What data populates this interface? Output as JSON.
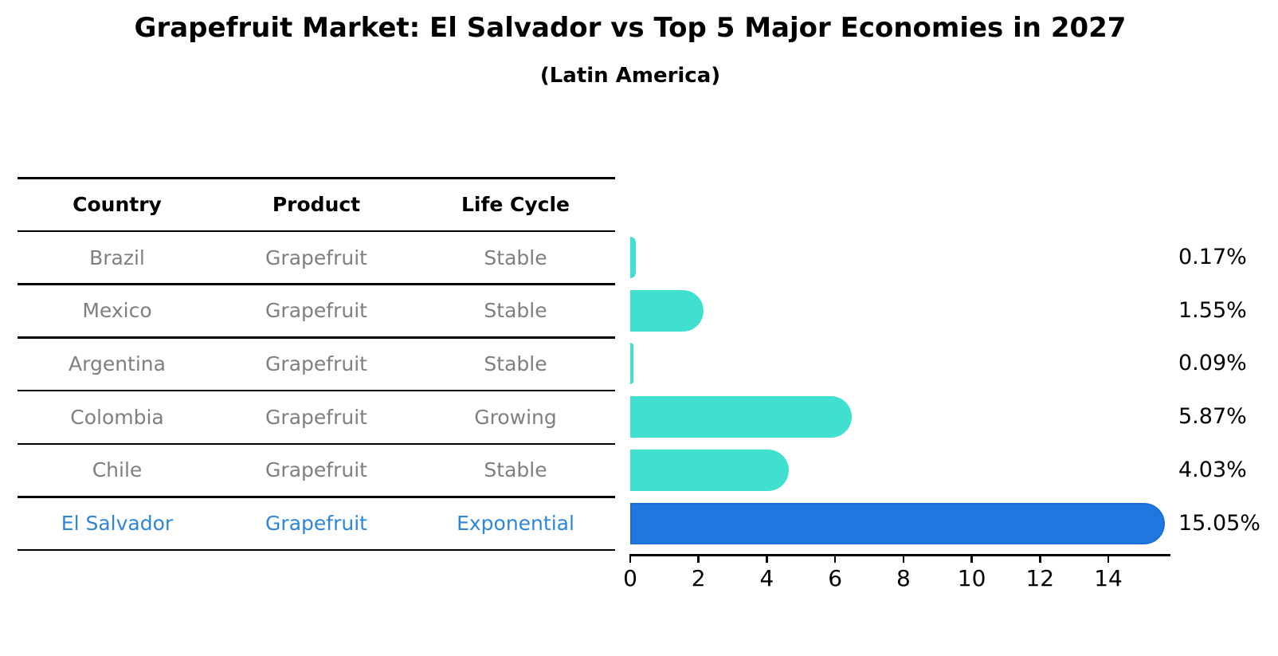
{
  "title": "Grapefruit Market: El Salvador vs Top 5 Major Economies in 2027",
  "subtitle": "(Latin America)",
  "table": {
    "headers": [
      "Country",
      "Product",
      "Life Cycle"
    ],
    "rows": [
      {
        "country": "Brazil",
        "product": "Grapefruit",
        "life_cycle": "Stable"
      },
      {
        "country": "Mexico",
        "product": "Grapefruit",
        "life_cycle": "Stable"
      },
      {
        "country": "Argentina",
        "product": "Grapefruit",
        "life_cycle": "Stable"
      },
      {
        "country": "Colombia",
        "product": "Grapefruit",
        "life_cycle": "Growing"
      },
      {
        "country": "Chile",
        "product": "Grapefruit",
        "life_cycle": "Stable"
      },
      {
        "country": "El Salvador",
        "product": "Grapefruit",
        "life_cycle": "Exponential"
      }
    ]
  },
  "chart_data": {
    "type": "bar",
    "orientation": "horizontal",
    "title": "Grapefruit Market: El Salvador vs Top 5 Major Economies in 2027",
    "subtitle": "(Latin America)",
    "categories": [
      "Brazil",
      "Mexico",
      "Argentina",
      "Colombia",
      "Chile",
      "El Salvador"
    ],
    "values": [
      0.17,
      1.55,
      0.09,
      5.87,
      4.03,
      15.05
    ],
    "value_labels": [
      "0.17%",
      "1.55%",
      "0.09%",
      "5.87%",
      "4.03%",
      "15.05%"
    ],
    "x_ticks": [
      0,
      2,
      4,
      6,
      8,
      10,
      12,
      14
    ],
    "xlim": [
      0,
      15.8
    ],
    "grid": false,
    "legend": "none",
    "highlight_index": 5
  },
  "colors": {
    "bar": "#40E0D0",
    "highlight_bar": "#1E78E0",
    "highlight_bar_edge": "#1565D0",
    "highlight_text": "#2E86D9",
    "row_text": "#7F7F7F",
    "header_text": "#000000",
    "line": "#000000"
  }
}
